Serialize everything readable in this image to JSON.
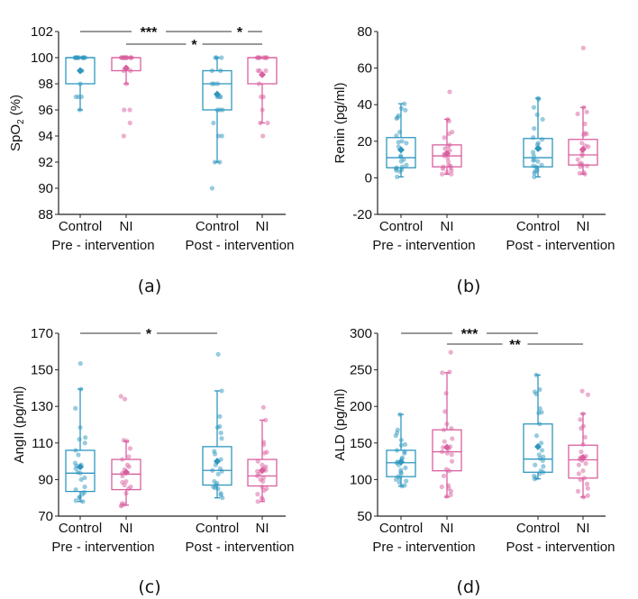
{
  "figure": {
    "colors": {
      "control": "#2f97bf",
      "ni": "#d9609f",
      "axis": "#222222",
      "sig_line": "#333333"
    }
  },
  "chart_data": [
    {
      "type": "box",
      "caption": "(a)",
      "title": "",
      "ylabel": "SpO2 (%)",
      "ylabel_main": "SpO",
      "ylabel_sub": "2",
      "ylabel_suffix": " (%)",
      "ylim": [
        88,
        102
      ],
      "yticks": [
        88,
        90,
        92,
        94,
        96,
        98,
        100,
        102
      ],
      "categories": [
        "Control",
        "NI",
        "Control",
        "NI"
      ],
      "groups": [
        {
          "label": "Pre - intervention",
          "members": [
            0,
            1
          ]
        },
        {
          "label": "Post - intervention",
          "members": [
            2,
            3
          ]
        }
      ],
      "series": [
        {
          "name": "Control",
          "group": "Pre - intervention",
          "q1": 98,
          "median": 100,
          "q3": 100,
          "whisker_low": 96,
          "whisker_high": 100,
          "mean": 99,
          "points": [
            100,
            100,
            100,
            100,
            100,
            100,
            100,
            100,
            100,
            100,
            100,
            100,
            99,
            98,
            97,
            97,
            97,
            96
          ]
        },
        {
          "name": "NI",
          "group": "Pre - intervention",
          "q1": 99,
          "median": 100,
          "q3": 100,
          "whisker_low": 98,
          "whisker_high": 100,
          "mean": 99.2,
          "points": [
            100,
            100,
            100,
            100,
            100,
            100,
            100,
            100,
            100,
            100,
            100,
            100,
            100,
            99,
            99,
            98,
            96,
            96,
            95,
            94
          ]
        },
        {
          "name": "Control",
          "group": "Post - intervention",
          "q1": 96,
          "median": 98,
          "q3": 99,
          "whisker_low": 92,
          "whisker_high": 100,
          "mean": 97.2,
          "points": [
            100,
            100,
            100,
            99,
            99,
            98,
            98,
            98,
            97,
            97,
            97,
            96,
            96,
            96,
            95,
            94,
            94,
            92,
            92,
            90
          ]
        },
        {
          "name": "NI",
          "group": "Post - intervention",
          "q1": 98,
          "median": 100,
          "q3": 100,
          "whisker_low": 95,
          "whisker_high": 100,
          "mean": 98.7,
          "points": [
            100,
            100,
            100,
            100,
            100,
            100,
            100,
            100,
            99,
            99,
            99,
            98,
            97,
            97,
            96,
            95,
            95,
            94
          ]
        }
      ],
      "significance": [
        {
          "from": 0,
          "to": 2,
          "label": "***",
          "level": 1
        },
        {
          "from": 2,
          "to": 3,
          "label": "*",
          "level": 1
        },
        {
          "from": 1,
          "to": 3,
          "label": "*",
          "level": 2
        }
      ]
    },
    {
      "type": "box",
      "caption": "(b)",
      "title": "",
      "ylabel": "Renin (pg/ml)",
      "ylim": [
        -20,
        80
      ],
      "yticks": [
        -20,
        0,
        20,
        40,
        60,
        80
      ],
      "categories": [
        "Control",
        "NI",
        "Control",
        "NI"
      ],
      "groups": [
        {
          "label": "Pre - intervention",
          "members": [
            0,
            1
          ]
        },
        {
          "label": "Post - intervention",
          "members": [
            2,
            3
          ]
        }
      ],
      "series": [
        {
          "name": "Control",
          "group": "Pre - intervention",
          "q1": 5.5,
          "median": 11,
          "q3": 22,
          "whisker_low": 0.5,
          "whisker_high": 40.5,
          "mean": 15.3,
          "points": [
            40.5,
            38,
            37,
            34,
            33,
            32.5,
            25,
            23,
            20,
            19.5,
            19,
            17,
            12,
            11.5,
            10,
            9,
            7,
            6,
            5.5,
            5,
            4.5,
            4,
            3.5,
            0.5
          ]
        },
        {
          "name": "NI",
          "group": "Pre - intervention",
          "q1": 6,
          "median": 12,
          "q3": 18,
          "whisker_low": 2,
          "whisker_high": 32,
          "mean": 13.2,
          "points": [
            47,
            32,
            31,
            25,
            24,
            22,
            18,
            17,
            16,
            15,
            14,
            13,
            12,
            11,
            9,
            7,
            6.5,
            6,
            5.5,
            5,
            4,
            3,
            2,
            2
          ]
        },
        {
          "name": "Control",
          "group": "Post - intervention",
          "q1": 6,
          "median": 11,
          "q3": 21.5,
          "whisker_low": 0.5,
          "whisker_high": 43.5,
          "mean": 16,
          "points": [
            43.5,
            43,
            38.5,
            34.5,
            32,
            27,
            22,
            21,
            19,
            18,
            16,
            14,
            12,
            10,
            9.5,
            9,
            7,
            6.5,
            6,
            5.5,
            4,
            3.5,
            2.5,
            0.5
          ]
        },
        {
          "name": "NI",
          "group": "Post - intervention",
          "q1": 7,
          "median": 12.5,
          "q3": 21,
          "whisker_low": 2,
          "whisker_high": 38.5,
          "mean": 15.6,
          "points": [
            71,
            38.5,
            36,
            35,
            29.5,
            24.5,
            24,
            23.5,
            19,
            17.5,
            17,
            15,
            13,
            12,
            10,
            8,
            7.5,
            7,
            6.5,
            6,
            3,
            2.5,
            2
          ]
        }
      ],
      "significance": []
    },
    {
      "type": "box",
      "caption": "(c)",
      "title": "",
      "ylabel": "AngII (pg/ml)",
      "ylim": [
        70,
        170
      ],
      "yticks": [
        70,
        90,
        110,
        130,
        150,
        170
      ],
      "categories": [
        "Control",
        "NI",
        "Control",
        "NI"
      ],
      "groups": [
        {
          "label": "Pre - intervention",
          "members": [
            0,
            1
          ]
        },
        {
          "label": "Post - intervention",
          "members": [
            2,
            3
          ]
        }
      ],
      "series": [
        {
          "name": "Control",
          "group": "Pre - intervention",
          "q1": 83.5,
          "median": 93.5,
          "q3": 106,
          "whisker_low": 78,
          "whisker_high": 139.5,
          "mean": 97,
          "points": [
            153.5,
            139.5,
            129,
            118.5,
            113,
            112,
            110,
            106,
            103.5,
            99,
            98,
            97.5,
            96,
            94,
            93.5,
            91,
            90,
            86,
            84.5,
            83,
            82,
            80.5,
            80,
            78.5,
            78
          ]
        },
        {
          "name": "NI",
          "group": "Pre - intervention",
          "q1": 84.5,
          "median": 93,
          "q3": 101,
          "whisker_low": 76,
          "whisker_high": 111,
          "mean": 94,
          "points": [
            135.5,
            134,
            111.5,
            111,
            107,
            102.5,
            101,
            98,
            97,
            95.5,
            94,
            93.5,
            92,
            89,
            88.5,
            87,
            86,
            85,
            82.5,
            77,
            76.5,
            76,
            75.5
          ]
        },
        {
          "name": "Control",
          "group": "Post - intervention",
          "q1": 87,
          "median": 95,
          "q3": 108,
          "whisker_low": 80,
          "whisker_high": 138.5,
          "mean": 100,
          "points": [
            158.5,
            138.5,
            124.5,
            119,
            118.5,
            115.5,
            112.5,
            105.5,
            104,
            101,
            98,
            96,
            95,
            94.5,
            93,
            89,
            88,
            87,
            86,
            85.5,
            85,
            82.5,
            81.5,
            80
          ]
        },
        {
          "name": "NI",
          "group": "Post - intervention",
          "q1": 86.5,
          "median": 92,
          "q3": 101,
          "whisker_low": 78,
          "whisker_high": 122.5,
          "mean": 95,
          "points": [
            129.5,
            122.5,
            110.5,
            109,
            105,
            104.5,
            100,
            98,
            97,
            96,
            95,
            94.5,
            93,
            92,
            91,
            90,
            89,
            86,
            85,
            84,
            82,
            80,
            79,
            78
          ]
        }
      ],
      "significance": [
        {
          "from": 0,
          "to": 2,
          "label": "*",
          "level": 1
        }
      ]
    },
    {
      "type": "box",
      "caption": "(d)",
      "title": "",
      "ylabel": "ALD (pg/ml)",
      "ylim": [
        50,
        300
      ],
      "yticks": [
        50,
        100,
        150,
        200,
        250,
        300
      ],
      "categories": [
        "Control",
        "NI",
        "Control",
        "NI"
      ],
      "groups": [
        {
          "label": "Pre - intervention",
          "members": [
            0,
            1
          ]
        },
        {
          "label": "Post - intervention",
          "members": [
            2,
            3
          ]
        }
      ],
      "series": [
        {
          "name": "Control",
          "group": "Pre - intervention",
          "q1": 104,
          "median": 123,
          "q3": 140,
          "whisker_low": 91,
          "whisker_high": 189,
          "mean": 124,
          "points": [
            189,
            168,
            164,
            160,
            154,
            148,
            147,
            140,
            138,
            136,
            130,
            128,
            124,
            123,
            120,
            116,
            113,
            110,
            108,
            104,
            102,
            100,
            98,
            96,
            92,
            91
          ]
        },
        {
          "name": "NI",
          "group": "Pre - intervention",
          "q1": 112,
          "median": 138,
          "q3": 168,
          "whisker_low": 76,
          "whisker_high": 246,
          "mean": 144,
          "points": [
            274,
            247,
            246,
            218,
            193,
            176,
            170,
            168,
            156,
            152,
            145,
            144,
            142,
            138,
            136,
            134,
            125,
            114,
            112,
            105,
            92,
            90,
            88,
            84,
            79,
            77
          ]
        },
        {
          "name": "Control",
          "group": "Post - intervention",
          "q1": 110,
          "median": 128,
          "q3": 176,
          "whisker_low": 101,
          "whisker_high": 243,
          "mean": 145,
          "points": [
            243,
            223,
            220,
            217,
            197,
            192,
            191,
            176,
            160,
            150,
            140,
            134,
            131,
            129,
            126,
            120,
            118,
            112,
            110,
            108,
            105,
            102,
            101
          ]
        },
        {
          "name": "NI",
          "group": "Post - intervention",
          "q1": 102,
          "median": 127,
          "q3": 147,
          "whisker_low": 76,
          "whisker_high": 190,
          "mean": 130,
          "points": [
            221,
            216,
            190,
            182,
            173,
            170,
            158,
            148,
            138,
            132,
            131,
            130,
            128,
            126,
            122,
            120,
            112,
            108,
            102,
            100,
            94,
            88,
            84,
            78,
            76
          ]
        }
      ],
      "significance": [
        {
          "from": 0,
          "to": 2,
          "label": "***",
          "level": 1
        },
        {
          "from": 1,
          "to": 3,
          "label": "**",
          "level": 2
        }
      ]
    }
  ]
}
